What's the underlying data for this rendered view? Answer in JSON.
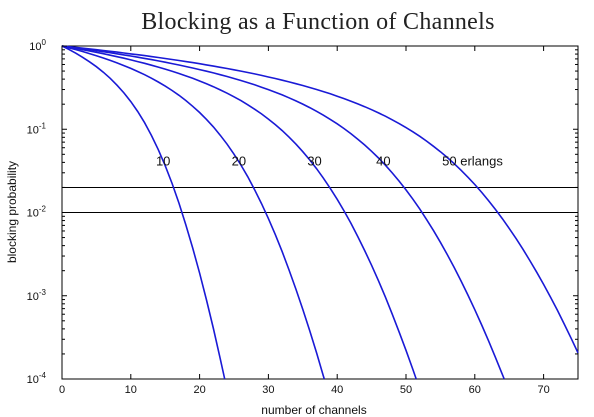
{
  "chart_data": {
    "type": "line",
    "title": "Blocking as a Function of Channels",
    "xlabel": "number of channels",
    "ylabel": "blocking probability",
    "xlim": [
      0,
      75
    ],
    "ylim": [
      0.0001,
      1
    ],
    "yscale": "log",
    "grid": false,
    "xticks": [
      0,
      10,
      20,
      30,
      40,
      50,
      60,
      70
    ],
    "yticks": [
      {
        "value": 1,
        "base": "10",
        "exp": "0"
      },
      {
        "value": 0.1,
        "base": "10",
        "exp": "-1"
      },
      {
        "value": 0.01,
        "base": "10",
        "exp": "-2"
      },
      {
        "value": 0.001,
        "base": "10",
        "exp": "-3"
      },
      {
        "value": 0.0001,
        "base": "10",
        "exp": "-4"
      }
    ],
    "line_color": "#1a1ad6",
    "reference_lines": [
      0.02,
      0.01
    ],
    "series": [
      {
        "label": "10",
        "traffic_erlangs": 10
      },
      {
        "label": "20",
        "traffic_erlangs": 20
      },
      {
        "label": "30",
        "traffic_erlangs": 30
      },
      {
        "label": "40",
        "traffic_erlangs": 40
      },
      {
        "label": "50 erlangs",
        "traffic_erlangs": 50
      }
    ]
  }
}
